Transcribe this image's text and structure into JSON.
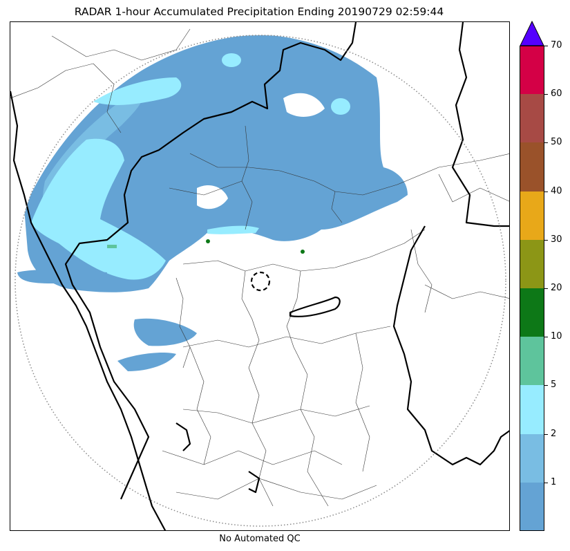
{
  "title": "RADAR 1-hour Accumulated Precipitation Ending 20190729 02:59:44",
  "footer": "No Automated QC",
  "colorbar": {
    "extend": "max",
    "overflow_color": "#5500ff",
    "bins": [
      {
        "from": 0,
        "to": 1,
        "color": "#64a3d4"
      },
      {
        "from": 1,
        "to": 2,
        "color": "#79bde3"
      },
      {
        "from": 2,
        "to": 5,
        "color": "#97ecff"
      },
      {
        "from": 5,
        "to": 10,
        "color": "#5ec49c"
      },
      {
        "from": 10,
        "to": 20,
        "color": "#0d7817"
      },
      {
        "from": 20,
        "to": 30,
        "color": "#8c9616"
      },
      {
        "from": 30,
        "to": 40,
        "color": "#e8a819"
      },
      {
        "from": 40,
        "to": 50,
        "color": "#9a522a"
      },
      {
        "from": 50,
        "to": 60,
        "color": "#a74a45"
      },
      {
        "from": 60,
        "to": 70,
        "color": "#d40046"
      }
    ],
    "tick_labels": [
      "1",
      "2",
      "5",
      "10",
      "20",
      "30",
      "40",
      "50",
      "60",
      "70"
    ]
  },
  "map": {
    "range_ring": "dotted",
    "radar_site_marker": "dashed-circle"
  }
}
